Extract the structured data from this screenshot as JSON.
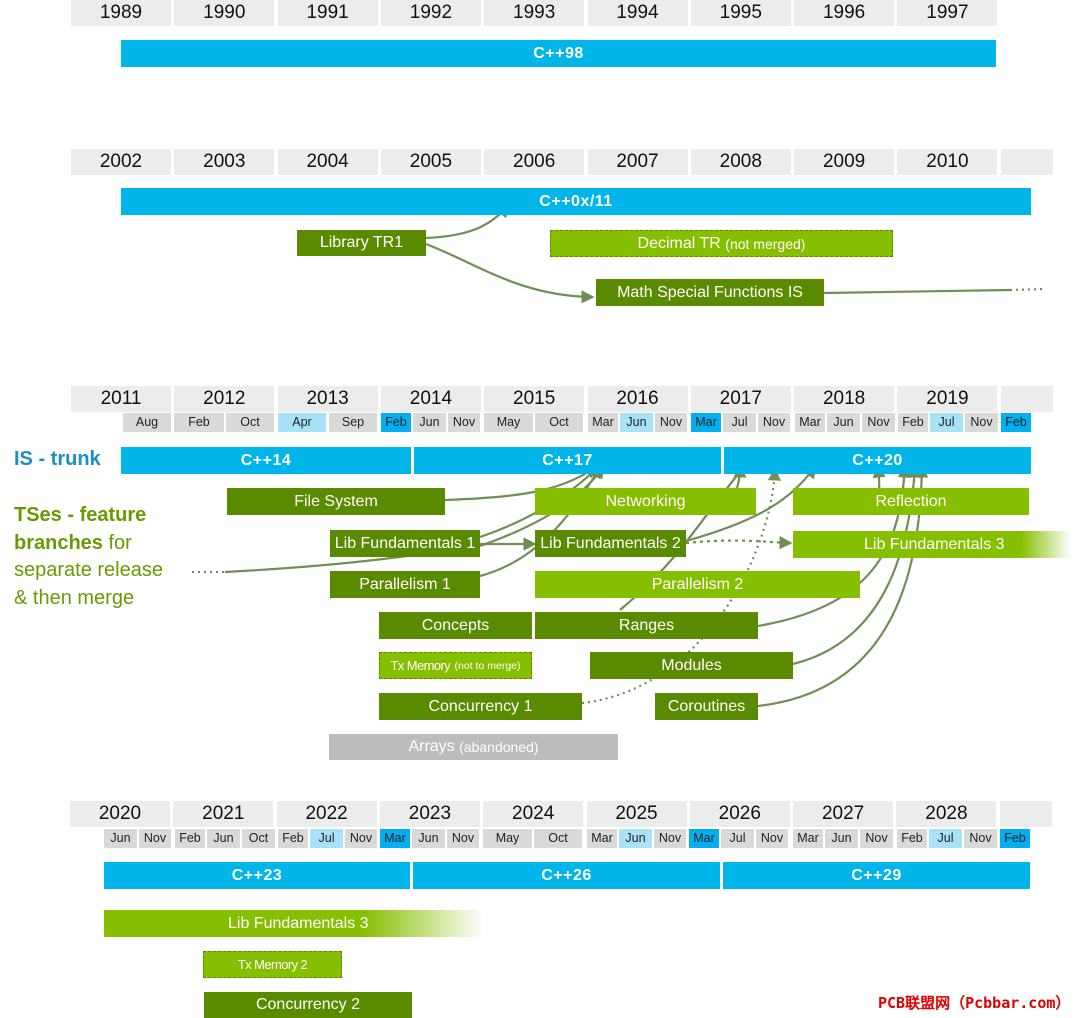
{
  "section1": {
    "years": [
      "1989",
      "1990",
      "1991",
      "1992",
      "1993",
      "1994",
      "1995",
      "1996",
      "1997"
    ],
    "standard": "C++98"
  },
  "section2": {
    "years": [
      "2002",
      "2003",
      "2004",
      "2005",
      "2006",
      "2007",
      "2008",
      "2009",
      "2010",
      ""
    ],
    "standard": "C++0x/11",
    "library_tr1": "Library TR1",
    "decimal_tr": "Decimal TR",
    "decimal_note": "(not merged)",
    "math_sf": "Math Special Functions IS"
  },
  "section3": {
    "years": [
      "2011",
      "2012",
      "2013",
      "2014",
      "2015",
      "2016",
      "2017",
      "2018",
      "2019",
      ""
    ],
    "months": [
      "Aug",
      "Feb",
      "Oct",
      "Apr",
      "Sep",
      "Feb",
      "Jun",
      "Nov",
      "May",
      "Oct",
      "Mar",
      "Jun",
      "Nov",
      "Mar",
      "Jul",
      "Nov",
      "Mar",
      "Jun",
      "Nov",
      "Feb",
      "Jul",
      "Nov",
      "Feb"
    ],
    "is_trunk": "IS - trunk",
    "tses_bold": "TSes - feature branches",
    "tses_rest1": " for",
    "tses_line2": "separate release",
    "tses_line3": "& then merge",
    "standards": [
      "C++14",
      "C++17",
      "C++20"
    ],
    "ts": {
      "file_system": "File System",
      "networking": "Networking",
      "reflection": "Reflection",
      "lib_fund_1": "Lib Fundamentals 1",
      "lib_fund_2": "Lib Fundamentals 2",
      "lib_fund_3": "Lib Fundamentals 3",
      "parallelism_1": "Parallelism 1",
      "parallelism_2": "Parallelism 2",
      "concepts": "Concepts",
      "ranges": "Ranges",
      "tx_memory": "Tx Memory",
      "tx_memory_note": "(not to merge)",
      "modules": "Modules",
      "concurrency_1": "Concurrency 1",
      "coroutines": "Coroutines",
      "arrays": "Arrays",
      "arrays_note": "(abandoned)"
    }
  },
  "section4": {
    "years": [
      "2020",
      "2021",
      "2022",
      "2023",
      "2024",
      "2025",
      "2026",
      "2027",
      "2028",
      ""
    ],
    "months": [
      "Jun",
      "Nov",
      "Feb",
      "Jun",
      "Oct",
      "Feb",
      "Jul",
      "Nov",
      "Mar",
      "Jun",
      "Nov",
      "May",
      "Oct",
      "Mar",
      "Jun",
      "Nov",
      "Mar",
      "Jul",
      "Nov",
      "Mar",
      "Jun",
      "Nov",
      "Feb",
      "Jul",
      "Nov",
      "Feb"
    ],
    "standards": [
      "C++23",
      "C++26",
      "C++29"
    ],
    "lib_fund_3": "Lib Fundamentals 3",
    "tx_memory_2": "Tx Memory 2",
    "concurrency_2": "Concurrency 2"
  },
  "watermark": "PCB联盟网（Pcbbar.com）",
  "colors": {
    "standard_blue": "#00b5ea",
    "month_dark_blue": "#00b0f0",
    "month_light_blue": "#a8e2f8",
    "ts_dark_green": "#5a8a00",
    "ts_light_green": "#86be00",
    "abandoned_gray": "#bcbcbc",
    "label_blue": "#1b8fc4",
    "label_green": "#6a9a00",
    "watermark_red": "#e00000"
  }
}
